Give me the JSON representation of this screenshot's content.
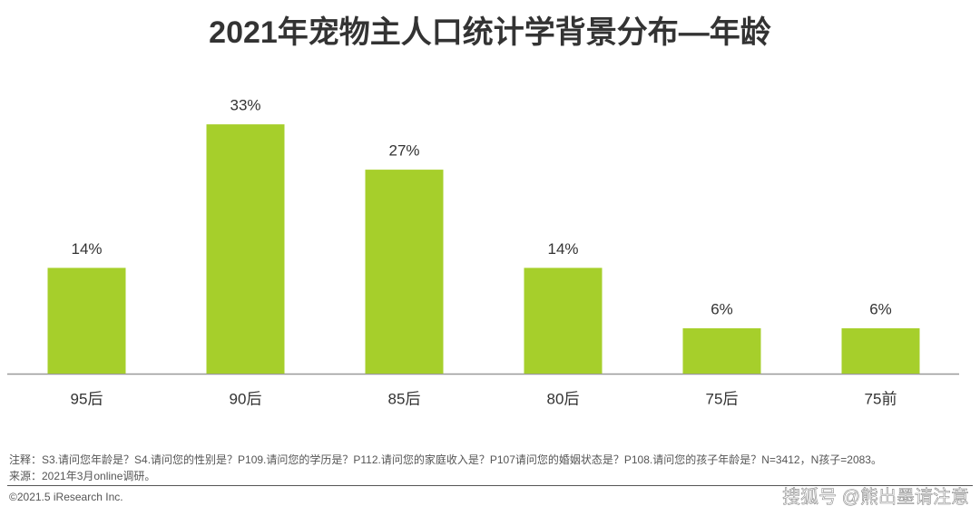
{
  "chart_data": {
    "type": "bar",
    "title": "2021年宠物主人口统计学背景分布—年龄",
    "categories": [
      "95后",
      "90后",
      "85后",
      "80后",
      "75后",
      "75前"
    ],
    "values": [
      14,
      33,
      27,
      14,
      6,
      6
    ],
    "value_labels": [
      "14%",
      "33%",
      "27%",
      "14%",
      "6%",
      "6%"
    ],
    "color": "#a6cf2b"
  },
  "footer": {
    "note": "注释：S3.请问您年龄是？S4.请问您的性别是？P109.请问您的学历是？P112.请问您的家庭收入是？P107请问您的婚姻状态是？P108.请问您的孩子年龄是？N=3412，N孩子=2083。",
    "source": "来源：2021年3月online调研。",
    "copyright": "©2021.5 iResearch Inc.",
    "watermark": "搜狐号 @熊出墨请注意"
  }
}
